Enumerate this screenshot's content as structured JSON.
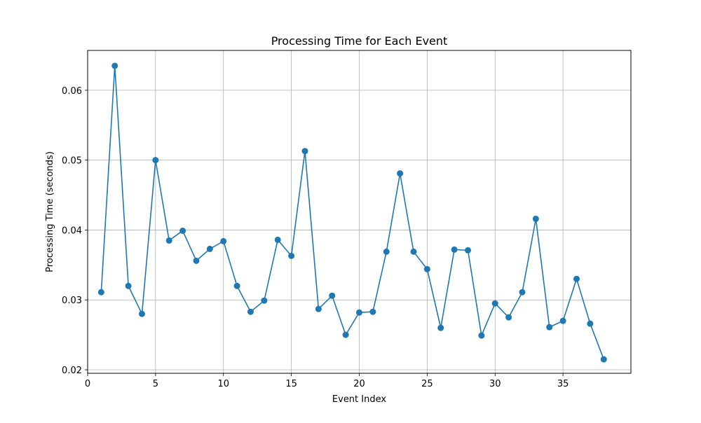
{
  "chart_data": {
    "type": "line",
    "title": "Processing Time for Each Event",
    "xlabel": "Event Index",
    "ylabel": "Processing Time (seconds)",
    "xlim": [
      0,
      40
    ],
    "ylim": [
      0.0195,
      0.0657
    ],
    "xticks": [
      0,
      5,
      10,
      15,
      20,
      25,
      30,
      35
    ],
    "xtick_labels": [
      "0",
      "5",
      "10",
      "15",
      "20",
      "25",
      "30",
      "35"
    ],
    "yticks": [
      0.02,
      0.03,
      0.04,
      0.05,
      0.06
    ],
    "ytick_labels": [
      "0.02",
      "0.03",
      "0.04",
      "0.05",
      "0.06"
    ],
    "grid": true,
    "marker": "circle",
    "color": "#1f77b4",
    "x": [
      1,
      2,
      3,
      4,
      5,
      6,
      7,
      8,
      9,
      10,
      11,
      12,
      13,
      14,
      15,
      16,
      17,
      18,
      19,
      20,
      21,
      22,
      23,
      24,
      25,
      26,
      27,
      28,
      29,
      30,
      31,
      32,
      33,
      34,
      35,
      36,
      37,
      38
    ],
    "y": [
      0.0311,
      0.0635,
      0.032,
      0.028,
      0.05,
      0.0385,
      0.0399,
      0.0356,
      0.0373,
      0.0384,
      0.032,
      0.0283,
      0.0299,
      0.0386,
      0.0363,
      0.0513,
      0.0287,
      0.0306,
      0.025,
      0.0282,
      0.0283,
      0.0369,
      0.0481,
      0.0369,
      0.0344,
      0.026,
      0.0372,
      0.0371,
      0.0249,
      0.0295,
      0.0275,
      0.0311,
      0.0416,
      0.0261,
      0.027,
      0.033,
      0.0266,
      0.0215
    ]
  }
}
